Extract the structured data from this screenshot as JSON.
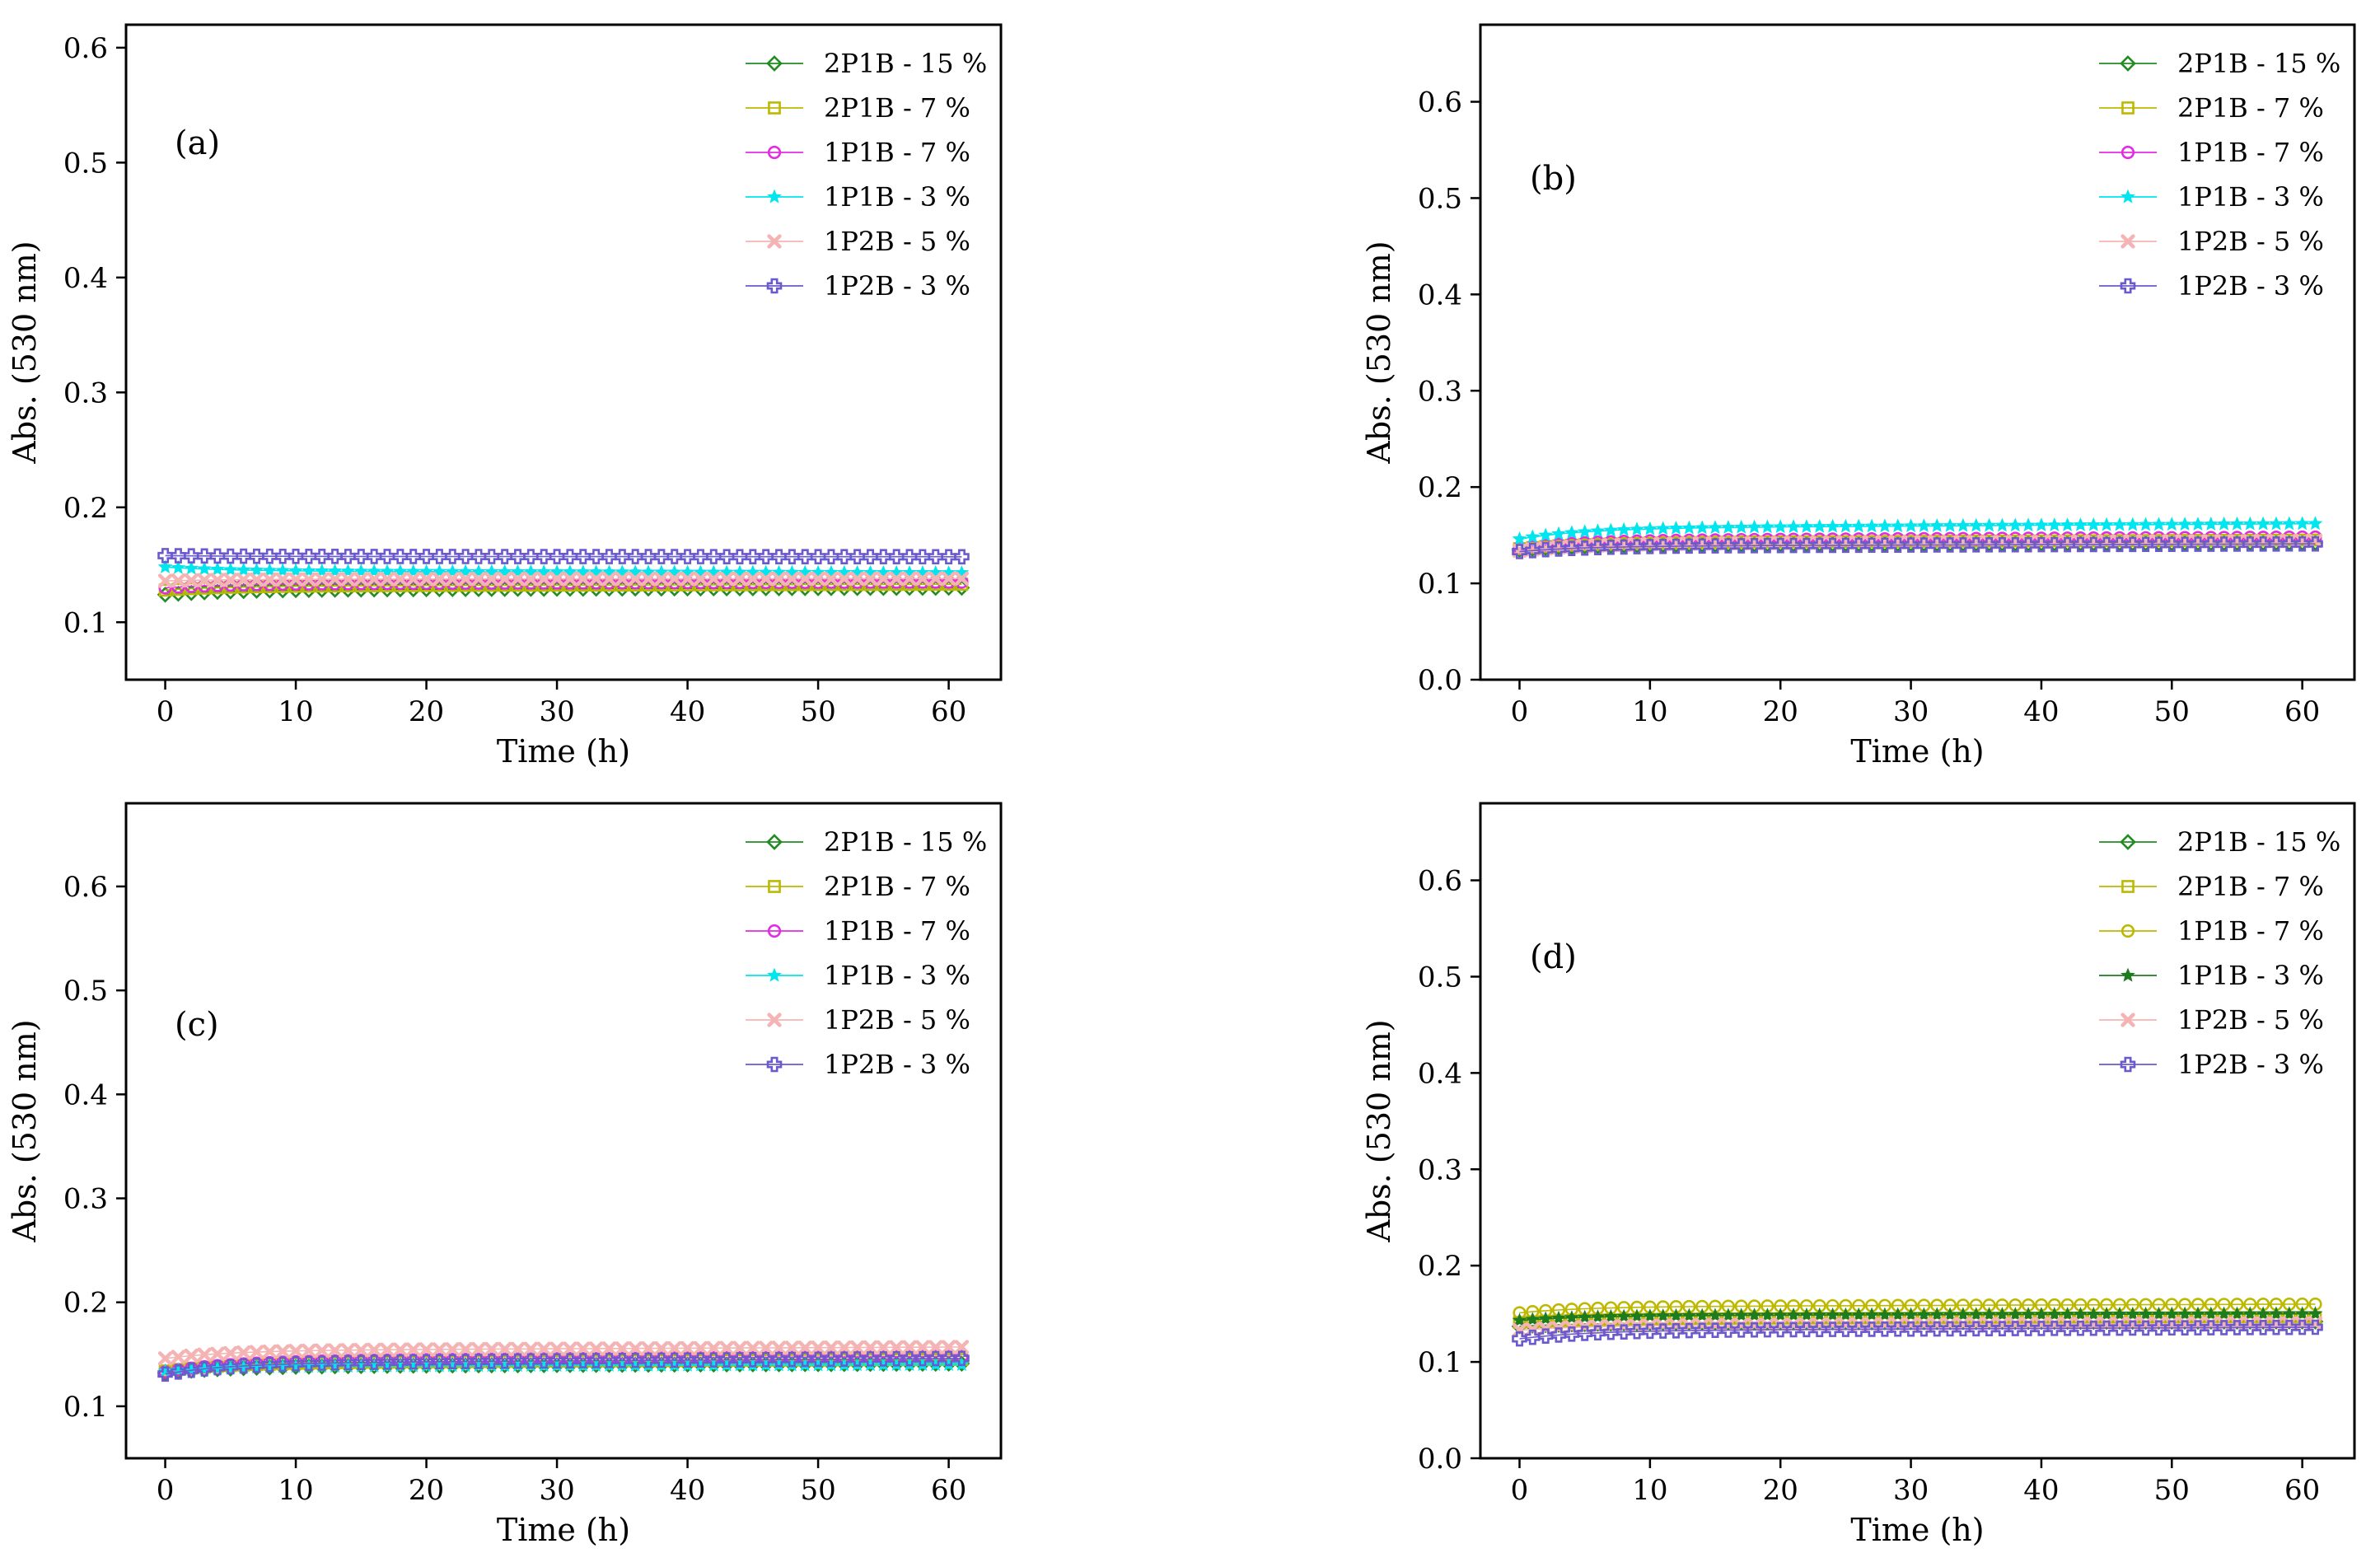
{
  "chart_data": [
    {
      "type": "line",
      "annotation": "(a)",
      "xlabel": "Time (h)",
      "ylabel": "Abs. (530 nm)",
      "xlim": [
        -3,
        64
      ],
      "ylim": [
        0.05,
        0.62
      ],
      "xticks": [
        0,
        10,
        20,
        30,
        40,
        50,
        60
      ],
      "yticks": [
        0.1,
        0.2,
        0.3,
        0.4,
        0.5,
        0.6
      ],
      "legend": "top-right",
      "grid": false,
      "series": [
        {
          "name": "2P1B - 15 %",
          "color": "#228B22",
          "marker": "diamond",
          "start": 0.124,
          "end": 0.13
        },
        {
          "name": "2P1B - 7 %",
          "color": "#BDB800",
          "marker": "square",
          "start": 0.128,
          "end": 0.133
        },
        {
          "name": "1P1B - 7 %",
          "color": "#E32BE3",
          "marker": "circle",
          "start": 0.13,
          "end": 0.135
        },
        {
          "name": "1P1B - 3 %",
          "color": "#00E5EE",
          "marker": "star",
          "start": 0.148,
          "end": 0.143
        },
        {
          "name": "1P2B - 5 %",
          "color": "#F4B4B4",
          "marker": "x",
          "start": 0.136,
          "end": 0.138
        },
        {
          "name": "1P2B - 3 %",
          "color": "#6A5ACD",
          "marker": "plus",
          "start": 0.158,
          "end": 0.157
        }
      ]
    },
    {
      "type": "line",
      "annotation": "(b)",
      "xlabel": "Time (h)",
      "ylabel": "Abs. (530 nm)",
      "xlim": [
        -3,
        64
      ],
      "ylim": [
        0.0,
        0.68
      ],
      "xticks": [
        0,
        10,
        20,
        30,
        40,
        50,
        60
      ],
      "yticks": [
        0.0,
        0.1,
        0.2,
        0.3,
        0.4,
        0.5,
        0.6
      ],
      "legend": "top-right",
      "grid": false,
      "series": [
        {
          "name": "2P1B - 15 %",
          "color": "#228B22",
          "marker": "diamond",
          "start": 0.135,
          "end": 0.142
        },
        {
          "name": "2P1B - 7 %",
          "color": "#BDB800",
          "marker": "square",
          "start": 0.136,
          "end": 0.145
        },
        {
          "name": "1P1B - 7 %",
          "color": "#E32BE3",
          "marker": "circle",
          "start": 0.137,
          "end": 0.148
        },
        {
          "name": "1P1B - 3 %",
          "color": "#00E5EE",
          "marker": "star",
          "start": 0.146,
          "end": 0.162
        },
        {
          "name": "1P2B - 5 %",
          "color": "#F4B4B4",
          "marker": "x",
          "start": 0.134,
          "end": 0.144
        },
        {
          "name": "1P2B - 3 %",
          "color": "#6A5ACD",
          "marker": "plus",
          "start": 0.133,
          "end": 0.141
        }
      ]
    },
    {
      "type": "line",
      "annotation": "(c)",
      "xlabel": "Time (h)",
      "ylabel": "Abs. (530 nm)",
      "xlim": [
        -3,
        64
      ],
      "ylim": [
        0.05,
        0.68
      ],
      "xticks": [
        0,
        10,
        20,
        30,
        40,
        50,
        60
      ],
      "yticks": [
        0.1,
        0.2,
        0.3,
        0.4,
        0.5,
        0.6
      ],
      "legend": "top-right",
      "grid": false,
      "series": [
        {
          "name": "2P1B - 15 %",
          "color": "#228B22",
          "marker": "diamond",
          "start": 0.132,
          "end": 0.141
        },
        {
          "name": "2P1B - 7 %",
          "color": "#BDB800",
          "marker": "square",
          "start": 0.134,
          "end": 0.145
        },
        {
          "name": "1P1B - 7 %",
          "color": "#E32BE3",
          "marker": "circle",
          "start": 0.133,
          "end": 0.148
        },
        {
          "name": "1P1B - 3 %",
          "color": "#00E5EE",
          "marker": "star",
          "start": 0.134,
          "end": 0.14
        },
        {
          "name": "1P2B - 5 %",
          "color": "#F4B4B4",
          "marker": "x",
          "start": 0.146,
          "end": 0.157
        },
        {
          "name": "1P2B - 3 %",
          "color": "#6A5ACD",
          "marker": "plus",
          "start": 0.131,
          "end": 0.146
        }
      ]
    },
    {
      "type": "line",
      "annotation": "(d)",
      "xlabel": "Time (h)",
      "ylabel": "Abs. (530 nm)",
      "xlim": [
        -3,
        64
      ],
      "ylim": [
        0.0,
        0.68
      ],
      "xticks": [
        0,
        10,
        20,
        30,
        40,
        50,
        60
      ],
      "yticks": [
        0.0,
        0.1,
        0.2,
        0.3,
        0.4,
        0.5,
        0.6
      ],
      "legend": "top-right",
      "grid": false,
      "series": [
        {
          "name": "2P1B - 15 %",
          "color": "#228B22",
          "marker": "diamond",
          "start": 0.137,
          "end": 0.142
        },
        {
          "name": "2P1B - 7 %",
          "color": "#BDB800",
          "marker": "square",
          "start": 0.141,
          "end": 0.146
        },
        {
          "name": "1P1B - 7 %",
          "color": "#BDB800",
          "marker": "circle",
          "start": 0.151,
          "end": 0.16
        },
        {
          "name": "1P1B - 3 %",
          "color": "#1E7B1E",
          "marker": "star",
          "start": 0.143,
          "end": 0.15
        },
        {
          "name": "1P2B - 5 %",
          "color": "#F4B4B4",
          "marker": "x",
          "start": 0.133,
          "end": 0.14
        },
        {
          "name": "1P2B - 3 %",
          "color": "#6A5ACD",
          "marker": "plus",
          "start": 0.124,
          "end": 0.136
        }
      ]
    }
  ]
}
